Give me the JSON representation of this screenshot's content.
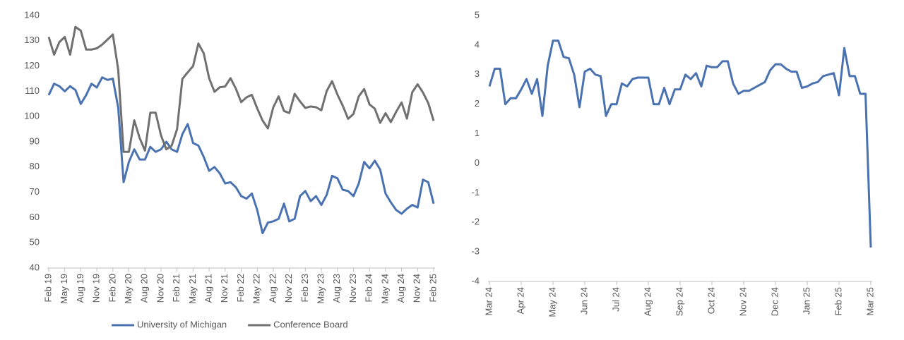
{
  "chart_data": [
    {
      "type": "line",
      "categories": [
        "Feb 19",
        null,
        null,
        "May 19",
        null,
        null,
        "Aug 19",
        null,
        null,
        "Nov 19",
        null,
        null,
        "Feb 20",
        null,
        null,
        "May 20",
        null,
        null,
        "Aug 20",
        null,
        null,
        "Nov 20",
        null,
        null,
        "Feb 21",
        null,
        null,
        "May 21",
        null,
        null,
        "Aug 21",
        null,
        null,
        "Nov 21",
        null,
        null,
        "Feb 22",
        null,
        null,
        "May 22",
        null,
        null,
        "Aug 22",
        null,
        null,
        "Nov 22",
        null,
        null,
        "Feb 23",
        null,
        null,
        "May 23",
        null,
        null,
        "Aug 23",
        null,
        null,
        "Nov 23",
        null,
        null,
        "Feb 24",
        null,
        null,
        "May 24",
        null,
        null,
        "Aug 24",
        null,
        null,
        "Nov 24",
        null,
        null,
        "Feb 25"
      ],
      "series": [
        {
          "name": "University of Michigan",
          "color": "#4a72b0",
          "values": [
            108.5,
            113,
            112,
            110,
            112,
            110.5,
            105,
            108.5,
            113,
            111.5,
            115.5,
            114.5,
            115,
            103.5,
            74,
            82,
            87,
            83,
            83,
            88,
            86,
            87,
            90,
            87,
            86,
            93,
            97,
            89.5,
            88.5,
            84,
            78.5,
            80,
            77.5,
            73.5,
            74,
            72,
            68.5,
            67.5,
            69.5,
            63,
            53.8,
            58,
            58.5,
            59.5,
            65.5,
            58.5,
            59.5,
            68.5,
            70.5,
            66.5,
            68.5,
            65,
            69,
            76.5,
            75.5,
            71,
            70.5,
            68.5,
            73.5,
            82,
            79.5,
            82.5,
            79,
            69.5,
            66,
            63,
            61.5,
            63.5,
            65,
            64,
            75,
            74,
            65.5
          ]
        },
        {
          "name": "Conference Board",
          "color": "#707070",
          "values": [
            131.5,
            124.5,
            129.5,
            131.5,
            124.5,
            135.5,
            134,
            126.5,
            126.5,
            127,
            128.5,
            130.5,
            132.5,
            118.5,
            86,
            86,
            98.5,
            91.5,
            86.5,
            101.5,
            101.5,
            92.5,
            87,
            88.5,
            95,
            114.9,
            117.5,
            120,
            128.9,
            125,
            115.2,
            109.8,
            111.6,
            111.9,
            115.2,
            111.1,
            105.7,
            107.6,
            108.6,
            103.2,
            98.4,
            95.3,
            103.6,
            108,
            102.2,
            101.4,
            109,
            106,
            103.4,
            104,
            103.7,
            102.5,
            110.1,
            114,
            108.7,
            104.3,
            99.1,
            101,
            108,
            110.9,
            104.8,
            103.1,
            97.5,
            101.3,
            97.8,
            101.9,
            105.6,
            99.2,
            109.6,
            112.8,
            109.5,
            105.3,
            98.3
          ]
        }
      ],
      "ylim": [
        40,
        140
      ],
      "yticks": [
        40,
        50,
        60,
        70,
        80,
        90,
        100,
        110,
        120,
        130,
        140
      ],
      "legend": "bottom"
    },
    {
      "type": "line",
      "categories": [
        "Mar 24",
        null,
        null,
        null,
        null,
        null,
        "Apr 24",
        null,
        null,
        null,
        null,
        null,
        "May 24",
        null,
        null,
        null,
        null,
        null,
        "Jun 24",
        null,
        null,
        null,
        null,
        null,
        "Jul 24",
        null,
        null,
        null,
        null,
        null,
        "Aug 24",
        null,
        null,
        null,
        null,
        null,
        "Sep 24",
        null,
        null,
        null,
        null,
        null,
        "Oct 24",
        null,
        null,
        null,
        null,
        null,
        "Nov 24",
        null,
        null,
        null,
        null,
        null,
        "Dec 24",
        null,
        null,
        null,
        null,
        null,
        "Jan 25",
        null,
        null,
        null,
        null,
        null,
        "Feb 25",
        null,
        null,
        null,
        null,
        null,
        "Mar 25"
      ],
      "color": "#4a72b0",
      "values": [
        2.6,
        3.2,
        3.2,
        2.0,
        2.2,
        2.2,
        2.5,
        2.85,
        2.35,
        2.85,
        1.6,
        3.3,
        4.15,
        4.15,
        3.6,
        3.55,
        3.0,
        1.9,
        3.1,
        3.2,
        3.0,
        2.95,
        1.6,
        2.0,
        2.0,
        2.7,
        2.6,
        2.85,
        2.9,
        2.9,
        2.9,
        2.0,
        2.0,
        2.55,
        2.0,
        2.5,
        2.5,
        3.0,
        2.85,
        3.05,
        2.6,
        3.3,
        3.25,
        3.25,
        3.45,
        3.45,
        2.7,
        2.35,
        2.45,
        2.45,
        2.55,
        2.65,
        2.75,
        3.15,
        3.35,
        3.35,
        3.2,
        3.1,
        3.1,
        2.55,
        2.6,
        2.7,
        2.75,
        2.95,
        3.0,
        3.05,
        2.3,
        3.9,
        2.95,
        2.95,
        2.35,
        2.35,
        -2.85
      ],
      "ylim": [
        -4,
        5
      ],
      "yticks": [
        -4,
        -3,
        -2,
        -1,
        0,
        1,
        2,
        3,
        4,
        5
      ]
    }
  ]
}
